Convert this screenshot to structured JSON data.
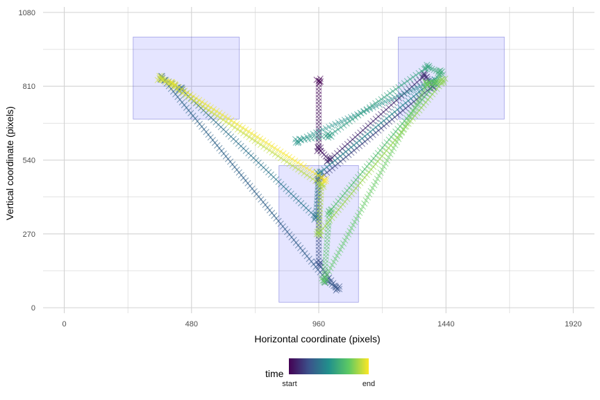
{
  "chart_data": {
    "type": "scatter",
    "title": "",
    "xlabel": "Horizontal coordinate (pixels)",
    "ylabel": "Vertical coordinate (pixels)",
    "xlim": [
      -80,
      2000
    ],
    "ylim": [
      -20,
      1100
    ],
    "x_ticks": [
      0,
      480,
      960,
      1440,
      1920
    ],
    "x_tick_labels": [
      "0",
      "480",
      "960",
      "1440",
      "1920"
    ],
    "y_ticks": [
      0,
      270,
      540,
      810,
      1080
    ],
    "y_tick_labels": [
      "0",
      "270",
      "540",
      "810",
      "1080"
    ],
    "grid": true,
    "marker": "x",
    "color_scale": "viridis",
    "regions": [
      {
        "x": [
          260,
          660
        ],
        "y": [
          690,
          990
        ]
      },
      {
        "x": [
          1260,
          1660
        ],
        "y": [
          690,
          990
        ]
      },
      {
        "x": [
          810,
          1110
        ],
        "y": [
          20,
          520
        ]
      }
    ],
    "path_keypoints": [
      {
        "t": 0.0,
        "x": 960,
        "y": 830
      },
      {
        "t": 0.05,
        "x": 960,
        "y": 580
      },
      {
        "t": 0.09,
        "x": 1000,
        "y": 540
      },
      {
        "t": 0.13,
        "x": 1360,
        "y": 850
      },
      {
        "t": 0.17,
        "x": 1390,
        "y": 810
      },
      {
        "t": 0.21,
        "x": 960,
        "y": 470
      },
      {
        "t": 0.25,
        "x": 960,
        "y": 160
      },
      {
        "t": 0.27,
        "x": 1030,
        "y": 70
      },
      {
        "t": 0.3,
        "x": 990,
        "y": 100
      },
      {
        "t": 0.34,
        "x": 370,
        "y": 840
      },
      {
        "t": 0.36,
        "x": 440,
        "y": 800
      },
      {
        "t": 0.4,
        "x": 950,
        "y": 330
      },
      {
        "t": 0.43,
        "x": 960,
        "y": 490
      },
      {
        "t": 0.47,
        "x": 1390,
        "y": 830
      },
      {
        "t": 0.52,
        "x": 880,
        "y": 610
      },
      {
        "t": 0.55,
        "x": 1000,
        "y": 630
      },
      {
        "t": 0.59,
        "x": 1370,
        "y": 880
      },
      {
        "t": 0.63,
        "x": 1420,
        "y": 860
      },
      {
        "t": 0.67,
        "x": 1400,
        "y": 820
      },
      {
        "t": 0.71,
        "x": 1000,
        "y": 350
      },
      {
        "t": 0.74,
        "x": 980,
        "y": 100
      },
      {
        "t": 0.78,
        "x": 1370,
        "y": 820
      },
      {
        "t": 0.82,
        "x": 1430,
        "y": 830
      },
      {
        "t": 0.85,
        "x": 960,
        "y": 270
      },
      {
        "t": 0.89,
        "x": 970,
        "y": 450
      },
      {
        "t": 0.93,
        "x": 360,
        "y": 840
      },
      {
        "t": 0.96,
        "x": 410,
        "y": 820
      },
      {
        "t": 1.0,
        "x": 980,
        "y": 470
      }
    ]
  },
  "legend": {
    "title": "time",
    "start_label": "start",
    "end_label": "end"
  }
}
